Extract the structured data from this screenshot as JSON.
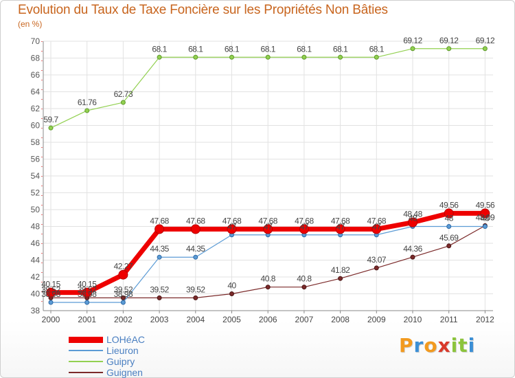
{
  "header": {
    "title": "Evolution du Taux de Taxe Foncière sur les Propriétés Non Bâties",
    "subtitle": "(en %)"
  },
  "logo": {
    "letters": [
      "P",
      "r",
      "o",
      "x",
      "i",
      "t",
      "i"
    ],
    "colors": [
      "#f29a1f",
      "#3b8fd6",
      "#f29a1f",
      "#d93a2b",
      "#8cc43c",
      "#8cc43c",
      "#3b8fd6"
    ]
  },
  "chart_data": {
    "type": "line",
    "x": [
      "2000",
      "2001",
      "2002",
      "2003",
      "2004",
      "2005",
      "2006",
      "2007",
      "2008",
      "2009",
      "2010",
      "2011",
      "2012"
    ],
    "ylim": [
      38,
      70
    ],
    "yticks": [
      38,
      40,
      42,
      44,
      46,
      48,
      50,
      52,
      54,
      56,
      58,
      60,
      62,
      64,
      66,
      68,
      70
    ],
    "grid": true,
    "legend_position": "bottom-left",
    "series": [
      {
        "name": "LOHéAC",
        "color": "#ee0000",
        "values": [
          40.15,
          40.15,
          42.27,
          47.68,
          47.68,
          47.68,
          47.68,
          47.68,
          47.68,
          47.68,
          48.48,
          49.56,
          49.56
        ],
        "labels": [
          "40.15",
          "40.15",
          "42.27",
          "47.68",
          "47.68",
          "47.68",
          "47.68",
          "47.68",
          "47.68",
          "47.68",
          "48.48",
          "49.56",
          "49.56"
        ]
      },
      {
        "name": "Lieuron",
        "color": "#5b9bd5",
        "values": [
          38.98,
          38.98,
          38.98,
          44.35,
          44.35,
          47,
          47,
          47,
          47,
          47,
          48,
          48,
          48
        ],
        "labels": [
          "38.98",
          "38.98",
          "38.98",
          "44.35",
          "44.35",
          "47",
          "47",
          "47",
          "47",
          "47",
          "48",
          "48",
          "48"
        ]
      },
      {
        "name": "Guipry",
        "color": "#92d050",
        "values": [
          59.7,
          61.76,
          62.73,
          68.1,
          68.1,
          68.1,
          68.1,
          68.1,
          68.1,
          68.1,
          69.12,
          69.12,
          69.12
        ],
        "labels": [
          "59.7",
          "61.76",
          "62.73",
          "68.1",
          "68.1",
          "68.1",
          "68.1",
          "68.1",
          "68.1",
          "68.1",
          "69.12",
          "69.12",
          "69.12"
        ]
      },
      {
        "name": "Guignen",
        "color": "#7b2a2a",
        "values": [
          39.52,
          39.52,
          39.52,
          39.52,
          39.52,
          40,
          40.8,
          40.8,
          41.82,
          43.07,
          44.36,
          45.69,
          48.09
        ],
        "labels": [
          "39.52",
          "39.52",
          "39.52",
          "39.52",
          "39.52",
          "40",
          "40.8",
          "40.8",
          "41.82",
          "43.07",
          "44.36",
          "45.69",
          "48.09"
        ]
      }
    ]
  }
}
